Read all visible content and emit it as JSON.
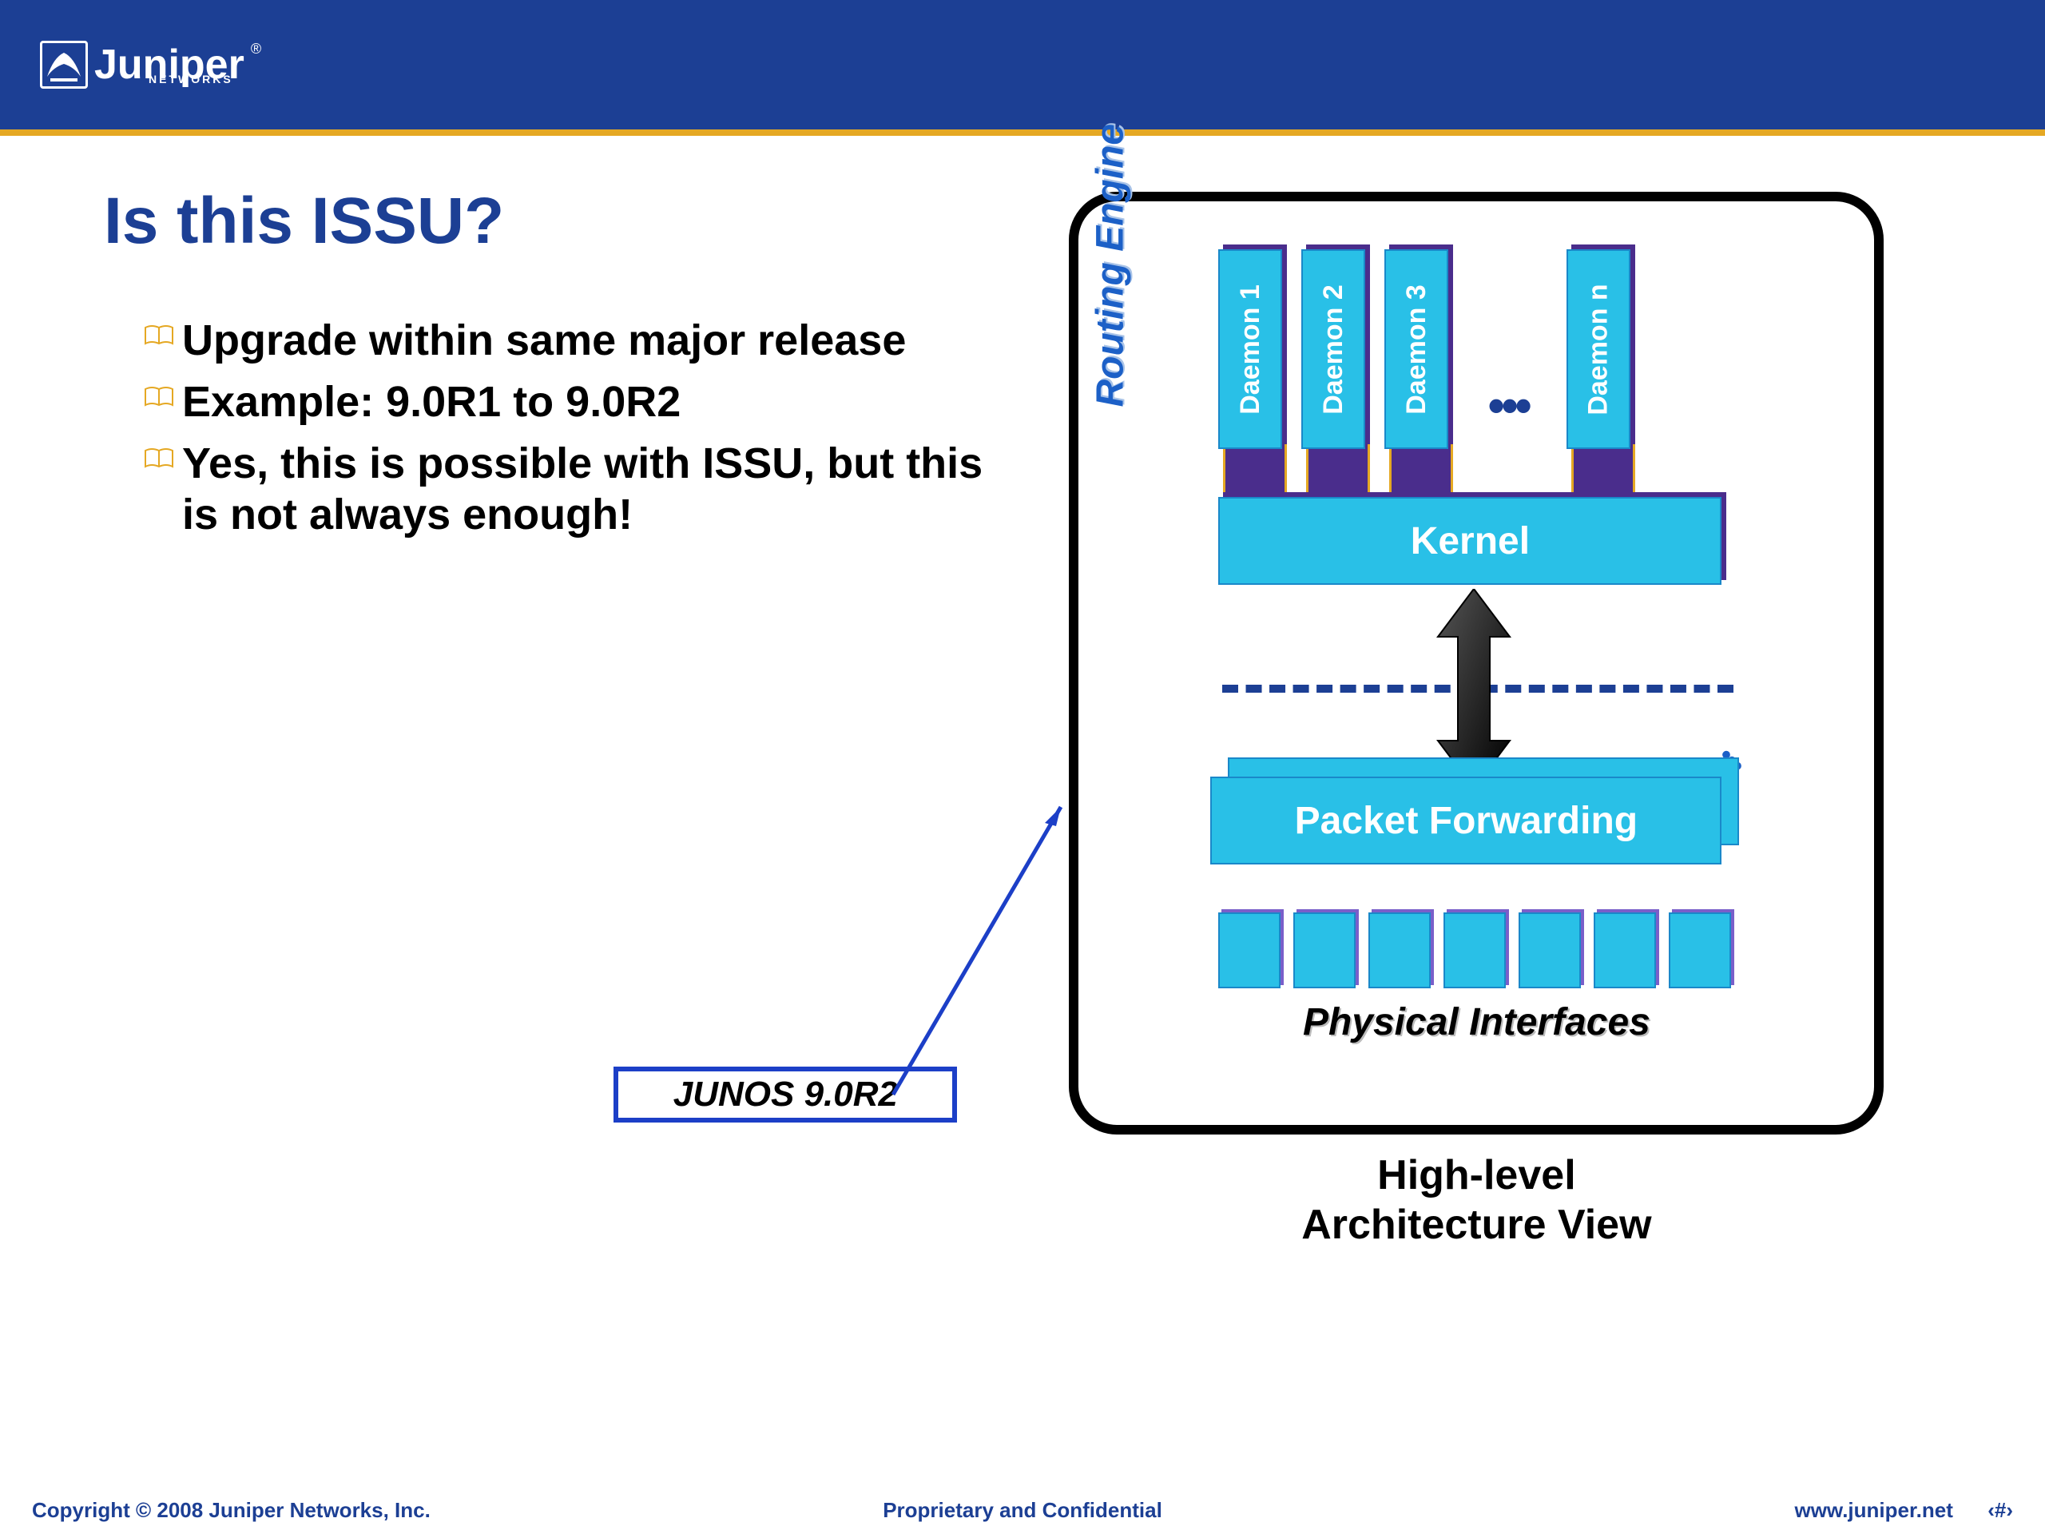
{
  "header": {
    "logo_main": "Juniper",
    "logo_sub": "NETWORKS",
    "logo_reg": "®",
    "bg_color": "#1c3f94",
    "accent_color": "#e5a823"
  },
  "slide": {
    "title": "Is this ISSU?",
    "title_color": "#1c3f94",
    "bullets": [
      "Upgrade within same major release",
      "Example: 9.0R1 to 9.0R2",
      "Yes, this is possible with ISSU, but this is not always enough!"
    ],
    "bullet_icon_color": "#e5a823"
  },
  "diagram": {
    "type": "block-diagram",
    "border_color": "#000000",
    "border_radius": 60,
    "routing_engine_label": "Routing Engine",
    "routing_engine_color": "#1c60c7",
    "daemons": [
      "Daemon 1",
      "Daemon 2",
      "Daemon 3",
      "Daemon n"
    ],
    "daemon_fill": "#29c0e7",
    "daemon_border": "#1a88c9",
    "daemon_shadow": "#4a2d8c",
    "daemon_text_color": "#ffffff",
    "dots": "•••",
    "kernel_label": "Kernel",
    "packet_forwarding_label": "Packet Forwarding",
    "physical_interfaces_label": "Physical Interfaces",
    "physical_count": 7,
    "dashed_color": "#1c3f94",
    "caption": "High-level\nArchitecture View",
    "junos_label": "JUNOS 9.0R2",
    "junos_border": "#1c3fc7"
  },
  "footer": {
    "left": "Copyright © 2008 Juniper Networks, Inc.",
    "center": "Proprietary and Confidential",
    "right": "www.juniper.net",
    "page": "‹#›",
    "color": "#1c3f94"
  }
}
